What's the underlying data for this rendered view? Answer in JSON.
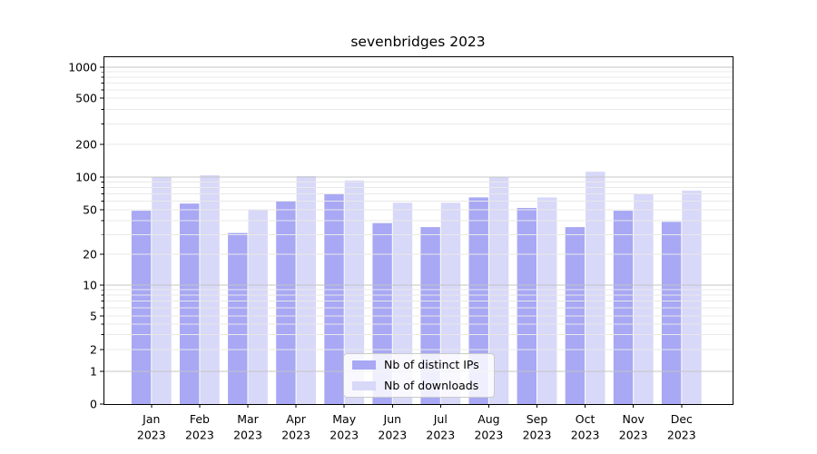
{
  "chart_data": {
    "type": "bar",
    "title": "sevenbridges 2023",
    "xlabel": "",
    "ylabel": "",
    "yscale": "symlog",
    "grid": true,
    "legend_position": "lower center",
    "categories": [
      "Jan",
      "Feb",
      "Mar",
      "Apr",
      "May",
      "Jun",
      "Jul",
      "Aug",
      "Sep",
      "Oct",
      "Nov",
      "Dec"
    ],
    "year": "2023",
    "series": [
      {
        "name": "Nb of distinct IPs",
        "color": "#a8a8f5",
        "values": [
          49,
          57,
          31,
          60,
          70,
          38,
          35,
          65,
          52,
          35,
          49,
          39
        ]
      },
      {
        "name": "Nb of downloads",
        "color": "#d8d8f8",
        "values": [
          100,
          104,
          50,
          102,
          93,
          58,
          58,
          100,
          65,
          112,
          70,
          75
        ]
      }
    ],
    "yticks": [
      0,
      1,
      2,
      5,
      10,
      20,
      50,
      100,
      200,
      500,
      1000
    ],
    "ylim": [
      0,
      1260
    ],
    "colors": {
      "major_gridline": "#c4c4c4",
      "minor_gridline": "#e9e9e9",
      "axis": "#000000",
      "background": "#ffffff"
    }
  }
}
